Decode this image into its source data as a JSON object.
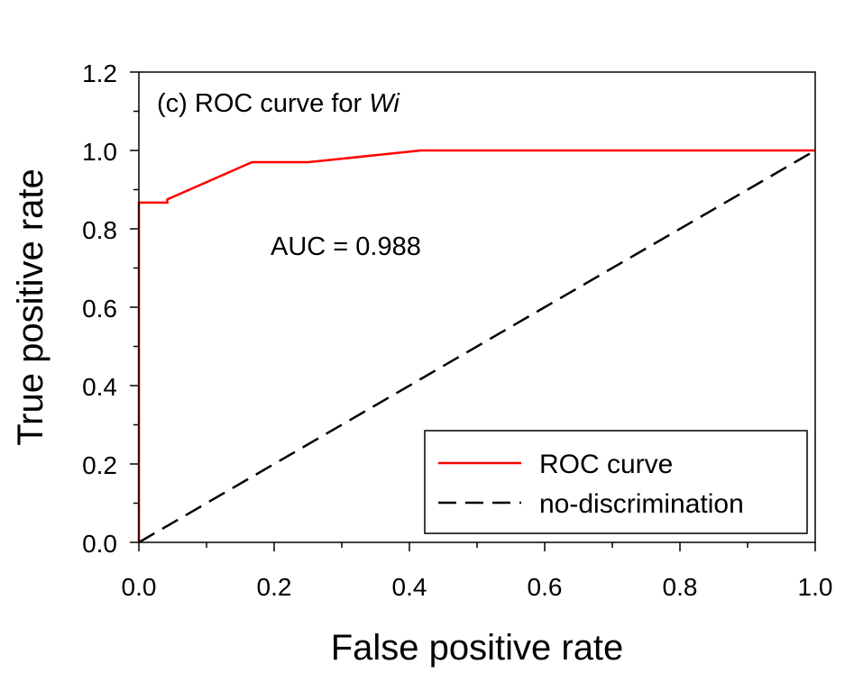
{
  "chart_data": {
    "type": "line",
    "title": "",
    "xlabel": "False positive rate",
    "ylabel": "True positive rate",
    "xlim": [
      0.0,
      1.0
    ],
    "ylim": [
      0.0,
      1.2
    ],
    "x_ticks": [
      0.0,
      0.2,
      0.4,
      0.6,
      0.8,
      1.0
    ],
    "x_tick_labels": [
      "0.0",
      "0.2",
      "0.4",
      "0.6",
      "0.8",
      "1.0"
    ],
    "y_ticks": [
      0.0,
      0.2,
      0.4,
      0.6,
      0.8,
      1.0,
      1.2
    ],
    "y_tick_labels": [
      "0.0",
      "0.2",
      "0.4",
      "0.6",
      "0.8",
      "1.0",
      "1.2"
    ],
    "grid": false,
    "legend_position": "bottom-right",
    "annotations": {
      "panel_prefix": "(c) ROC curve for ",
      "panel_italic": "Wi",
      "auc": "AUC = 0.988"
    },
    "series": [
      {
        "name": "ROC curve",
        "color": "#ff0000",
        "style": "solid",
        "x": [
          0.0,
          0.0,
          0.042,
          0.042,
          0.167,
          0.25,
          0.417,
          1.0
        ],
        "y": [
          0.0,
          0.867,
          0.867,
          0.875,
          0.97,
          0.97,
          1.0,
          1.0
        ]
      },
      {
        "name": "no-discrimination",
        "color": "#000000",
        "style": "dashed",
        "x": [
          0.0,
          1.0
        ],
        "y": [
          0.0,
          1.0
        ]
      }
    ]
  }
}
